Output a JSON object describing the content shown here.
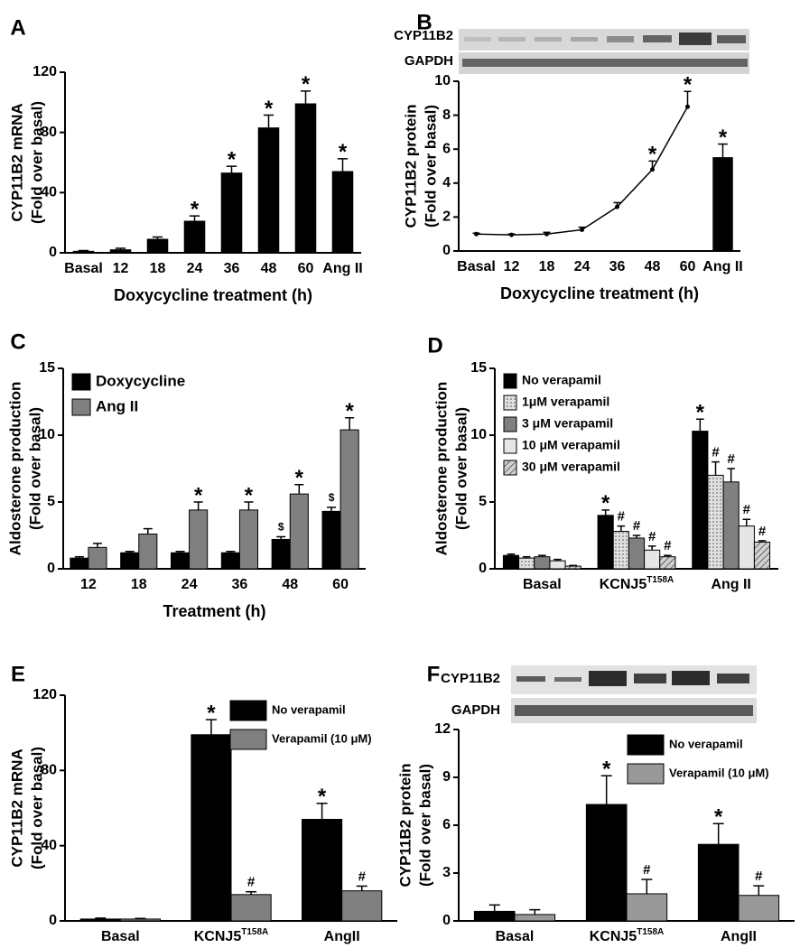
{
  "chart_data": [
    {
      "type": "bar",
      "panel": "A",
      "ylabel": [
        "CYP11B2 mRNA",
        "(Fold over basal)"
      ],
      "xlabel": "Doxycycline treatment (h)",
      "categories": [
        "Basal",
        "12",
        "18",
        "24",
        "36",
        "48",
        "60",
        "Ang II"
      ],
      "series": [
        {
          "color": "#000000",
          "values": [
            1,
            2,
            9,
            21,
            53,
            83,
            99,
            54
          ],
          "errors": [
            0.5,
            1,
            1.5,
            3.5,
            4.5,
            8.5,
            8.5,
            8.5
          ],
          "annotations": [
            null,
            null,
            null,
            "*",
            "*",
            "*",
            "*",
            "*"
          ]
        }
      ],
      "ylim": [
        0,
        120
      ],
      "yticks": [
        0,
        40,
        80,
        120
      ]
    },
    {
      "type": "combo",
      "panel": "B",
      "blot_labels": [
        "CYP11B2",
        "GAPDH"
      ],
      "ylabel": [
        "CYP11B2 protein",
        "(Fold over basal)"
      ],
      "xlabel": "Doxycycline treatment (h)",
      "categories": [
        "Basal",
        "12",
        "18",
        "24",
        "36",
        "48",
        "60",
        "Ang II"
      ],
      "series": [
        {
          "kind": "line",
          "color": "#000000",
          "values": [
            1,
            0.95,
            1,
            1.25,
            2.6,
            4.8,
            8.5,
            null
          ],
          "errors": [
            0.05,
            0.05,
            0.1,
            0.15,
            0.25,
            0.5,
            0.9,
            null
          ],
          "annotations": [
            null,
            null,
            null,
            null,
            null,
            "*",
            "*",
            null
          ]
        },
        {
          "kind": "bar",
          "color": "#000000",
          "values": [
            null,
            null,
            null,
            null,
            null,
            null,
            null,
            5.5
          ],
          "errors": [
            null,
            null,
            null,
            null,
            null,
            null,
            null,
            0.8
          ],
          "annotations": [
            null,
            null,
            null,
            null,
            null,
            null,
            null,
            "*"
          ]
        }
      ],
      "ylim": [
        0,
        10
      ],
      "yticks": [
        0,
        2,
        4,
        6,
        8,
        10
      ]
    },
    {
      "type": "bar",
      "panel": "C",
      "ylabel": [
        "Aldosterone production",
        "(Fold over basal)"
      ],
      "xlabel": "Treatment (h)",
      "categories": [
        "12",
        "18",
        "24",
        "36",
        "48",
        "60"
      ],
      "legend": "upper left",
      "series": [
        {
          "name": "Doxycycline",
          "color": "#000000",
          "values": [
            0.8,
            1.2,
            1.2,
            1.2,
            2.2,
            4.3
          ],
          "errors": [
            0.1,
            0.1,
            0.1,
            0.1,
            0.2,
            0.3
          ],
          "annotations": [
            null,
            null,
            null,
            null,
            "$",
            "$"
          ]
        },
        {
          "name": "Ang II",
          "color": "#808080",
          "values": [
            1.6,
            2.6,
            4.4,
            4.4,
            5.6,
            10.4
          ],
          "errors": [
            0.3,
            0.4,
            0.6,
            0.6,
            0.7,
            0.9
          ],
          "annotations": [
            null,
            null,
            "*",
            "*",
            "*",
            "*"
          ]
        }
      ],
      "ylim": [
        0,
        15
      ],
      "yticks": [
        0,
        5,
        10,
        15
      ]
    },
    {
      "type": "bar",
      "panel": "D",
      "ylabel": [
        "Aldosterone production",
        "(Fold over basal)"
      ],
      "categories": [
        "Basal",
        "KCNJ5",
        "Ang II"
      ],
      "category_superscripts": [
        null,
        "T158A",
        null
      ],
      "legend": "upper left",
      "series": [
        {
          "name": "No verapamil",
          "color": "#000000",
          "values": [
            1.0,
            4.0,
            10.3
          ],
          "errors": [
            0.1,
            0.4,
            0.9
          ],
          "annotations": [
            null,
            "*",
            "*"
          ]
        },
        {
          "name": "1μM verapamil",
          "color": "#d9d9d9",
          "hatch": "dots",
          "values": [
            0.8,
            2.8,
            7.0
          ],
          "errors": [
            0.1,
            0.4,
            1.0
          ],
          "annotations": [
            null,
            "#",
            "#"
          ]
        },
        {
          "name": "3 μM verapamil",
          "color": "#808080",
          "values": [
            0.9,
            2.3,
            6.5
          ],
          "errors": [
            0.1,
            0.2,
            1.0
          ],
          "annotations": [
            null,
            "#",
            "#"
          ]
        },
        {
          "name": "10 μM verapamil",
          "color": "#e6e6e6",
          "values": [
            0.6,
            1.4,
            3.2
          ],
          "errors": [
            0.1,
            0.3,
            0.5
          ],
          "annotations": [
            null,
            "#",
            "#"
          ]
        },
        {
          "name": "30 μM verapamil",
          "color": "#bfbfbf",
          "hatch": "diagonal",
          "values": [
            0.2,
            0.9,
            2.0
          ],
          "errors": [
            0.05,
            0.1,
            0.1
          ],
          "annotations": [
            null,
            "#",
            "#"
          ]
        }
      ],
      "ylim": [
        0,
        15
      ],
      "yticks": [
        0,
        5,
        10,
        15
      ]
    },
    {
      "type": "bar",
      "panel": "E",
      "ylabel": [
        "CYP11B2 mRNA",
        "(Fold over basal)"
      ],
      "categories": [
        "Basal",
        "KCNJ5",
        "AngII"
      ],
      "category_superscripts": [
        null,
        "T158A",
        null
      ],
      "legend": "upper right",
      "series": [
        {
          "name": "No verapamil",
          "color": "#000000",
          "values": [
            1,
            99,
            54
          ],
          "errors": [
            0.5,
            8,
            8.5
          ],
          "annotations": [
            null,
            "*",
            "*"
          ]
        },
        {
          "name": "Verapamil (10 μM)",
          "color": "#808080",
          "values": [
            1,
            14,
            16
          ],
          "errors": [
            0.3,
            1.5,
            2.5
          ],
          "annotations": [
            null,
            "#",
            "#"
          ]
        }
      ],
      "ylim": [
        0,
        120
      ],
      "yticks": [
        0,
        40,
        80,
        120
      ]
    },
    {
      "type": "bar",
      "panel": "F",
      "blot_labels": [
        "CYP11B2",
        "GAPDH"
      ],
      "ylabel": [
        "CYP11B2 protein",
        "(Fold over basal)"
      ],
      "categories": [
        "Basal",
        "KCNJ5",
        "AngII"
      ],
      "category_superscripts": [
        null,
        "T158A",
        null
      ],
      "legend": "upper right",
      "series": [
        {
          "name": "No verapamil",
          "color": "#000000",
          "values": [
            0.6,
            7.3,
            4.8
          ],
          "errors": [
            0.4,
            1.8,
            1.3
          ],
          "annotations": [
            null,
            "*",
            "*"
          ]
        },
        {
          "name": "Verapamil (10 μM)",
          "color": "#999999",
          "values": [
            0.4,
            1.7,
            1.6
          ],
          "errors": [
            0.3,
            0.9,
            0.6
          ],
          "annotations": [
            null,
            "#",
            "#"
          ]
        }
      ],
      "ylim": [
        0,
        12
      ],
      "yticks": [
        0,
        3,
        6,
        9,
        12
      ]
    }
  ]
}
